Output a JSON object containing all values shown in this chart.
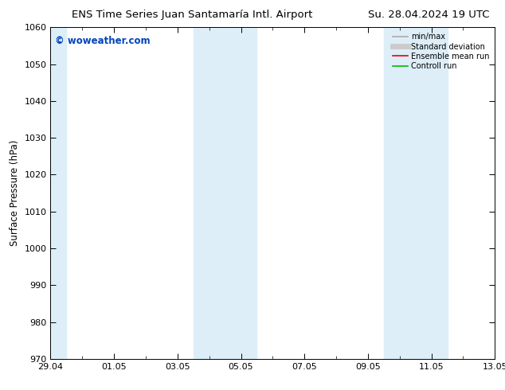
{
  "title_left": "ENS Time Series Juan Santamaría Intl. Airport",
  "title_right": "Su. 28.04.2024 19 UTC",
  "ylabel": "Surface Pressure (hPa)",
  "ylim": [
    970,
    1060
  ],
  "yticks": [
    970,
    980,
    990,
    1000,
    1010,
    1020,
    1030,
    1040,
    1050,
    1060
  ],
  "xlim_start": 0,
  "xlim_end": 14,
  "xtick_labels": [
    "29.04",
    "01.05",
    "03.05",
    "05.05",
    "07.05",
    "09.05",
    "11.05",
    "13.05"
  ],
  "xtick_label_positions": [
    0,
    2,
    4,
    6,
    8,
    10,
    12,
    14
  ],
  "xtick_minor_positions": [
    0,
    1,
    2,
    3,
    4,
    5,
    6,
    7,
    8,
    9,
    10,
    11,
    12,
    13,
    14
  ],
  "shaded_bands": [
    {
      "xmin": 0,
      "xmax": 0.5,
      "color": "#ddeef8",
      "alpha": 1.0
    },
    {
      "xmin": 4.5,
      "xmax": 6.5,
      "color": "#ddeef8",
      "alpha": 1.0
    },
    {
      "xmin": 10.5,
      "xmax": 12.5,
      "color": "#ddeef8",
      "alpha": 1.0
    }
  ],
  "watermark": "© woweather.com",
  "watermark_color": "#0044bb",
  "bg_color": "#ffffff",
  "plot_bg_color": "#ffffff",
  "legend_items": [
    {
      "label": "min/max",
      "color": "#aaaaaa",
      "lw": 1.2,
      "ls": "-"
    },
    {
      "label": "Standard deviation",
      "color": "#cccccc",
      "lw": 5,
      "ls": "-"
    },
    {
      "label": "Ensemble mean run",
      "color": "#ee0000",
      "lw": 1.2,
      "ls": "-"
    },
    {
      "label": "Controll run",
      "color": "#00bb00",
      "lw": 1.2,
      "ls": "-"
    }
  ],
  "title_fontsize": 9.5,
  "axis_fontsize": 8.5,
  "tick_fontsize": 8,
  "legend_fontsize": 7
}
